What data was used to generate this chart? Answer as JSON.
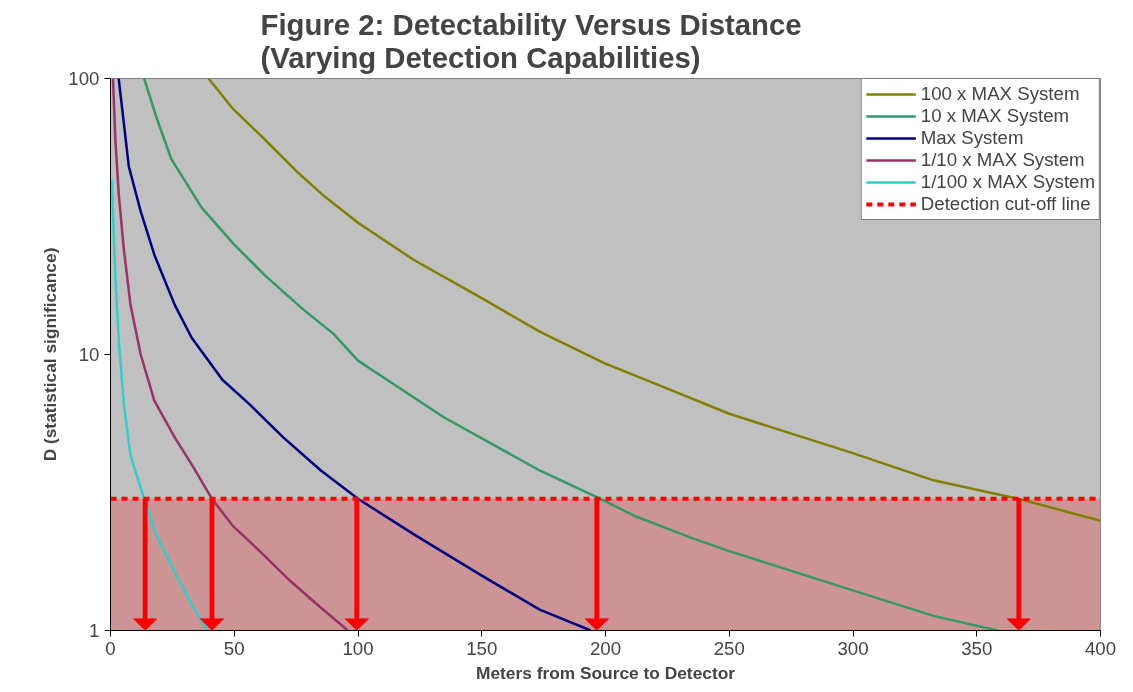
{
  "chart_data": {
    "type": "line",
    "title": "Figure 2: Detectability Versus Distance\n(Varying Detection Capabilities)",
    "xlabel": "Meters from Source to Detector",
    "ylabel": "D (statistical significance)",
    "log": "y",
    "grid": false,
    "legend": "top right",
    "line_style": "solid",
    "marker": "none",
    "xlim": [
      0,
      400
    ],
    "xticks": [
      0,
      50,
      100,
      150,
      200,
      250,
      300,
      350,
      400
    ],
    "ylim": [
      1,
      100
    ],
    "yticks": [
      1,
      10,
      100
    ],
    "series": [
      {
        "name": "100 x MAX System",
        "color": "#808000",
        "x": [
          39.6,
          49.3,
          61.6,
          75.3,
          86.3,
          100,
          122.6,
          150,
          173.4,
          199.5,
          227,
          250,
          299.6,
          332.5,
          366.7,
          400
        ],
        "values": [
          100,
          78,
          61,
          46,
          37.5,
          30,
          22,
          16,
          12.1,
          9.3,
          7.4,
          6.1,
          4.4,
          3.5,
          3,
          2.5
        ]
      },
      {
        "name": "10 x MAX System",
        "color": "#339966",
        "x": [
          13.6,
          18.4,
          24.6,
          36.9,
          50,
          62.3,
          77.7,
          90,
          100,
          111.7,
          135,
          173.4,
          198,
          211.8,
          235,
          250,
          299.6,
          332.5,
          358.4
        ],
        "values": [
          100,
          73,
          51,
          34,
          25,
          19.4,
          14.6,
          11.9,
          9.5,
          8.1,
          5.9,
          3.8,
          3,
          2.6,
          2.16,
          1.94,
          1.4,
          1.13,
          1
        ]
      },
      {
        "name": "Max System",
        "color": "#000080",
        "x": [
          3.3,
          7.4,
          12.2,
          17.7,
          26,
          32.8,
          45.2,
          56.2,
          69.9,
          85,
          100,
          122.6,
          150,
          173.4,
          194
        ],
        "values": [
          100,
          48,
          33,
          23,
          15.1,
          11.5,
          8.1,
          6.6,
          5,
          3.8,
          3,
          2.23,
          1.58,
          1.19,
          1
        ]
      },
      {
        "name": "1/10 x MAX System",
        "color": "#993366",
        "x": [
          1,
          2,
          3.4,
          5.4,
          8.1,
          12.2,
          17.7,
          26,
          32.8,
          41,
          49.3,
          60.3,
          71.3,
          83.6,
          95.9
        ],
        "values": [
          100,
          59,
          37.5,
          24,
          15.1,
          10,
          6.8,
          5,
          4,
          3,
          2.4,
          1.94,
          1.55,
          1.24,
          1
        ]
      },
      {
        "name": "1/100 x MAX System",
        "color": "#33cccc",
        "x": [
          0.5,
          2,
          3.4,
          5.4,
          8.1,
          13.6,
          18.4,
          26,
          32.8,
          39
        ],
        "values": [
          43,
          18.7,
          11.1,
          6.6,
          4.3,
          3,
          2.23,
          1.63,
          1.24,
          1
        ]
      }
    ],
    "ref_lines": [
      {
        "axis": "y",
        "value": 3,
        "label": "Detection cut-off line",
        "color": "#ff0000",
        "line_style": "dashed"
      },
      {
        "axis": "x",
        "value": 14,
        "color": "#ff0000"
      },
      {
        "axis": "x",
        "value": 41,
        "color": "#ff0000"
      },
      {
        "axis": "x",
        "value": 99.5,
        "color": "#ff0000"
      },
      {
        "axis": "x",
        "value": 196.5,
        "color": "#ff0000"
      },
      {
        "axis": "x",
        "value": 367,
        "color": "#ff0000"
      }
    ],
    "bands": [
      {
        "axis": "y",
        "from": 1,
        "to": 3,
        "color": "#cc9494"
      }
    ]
  }
}
